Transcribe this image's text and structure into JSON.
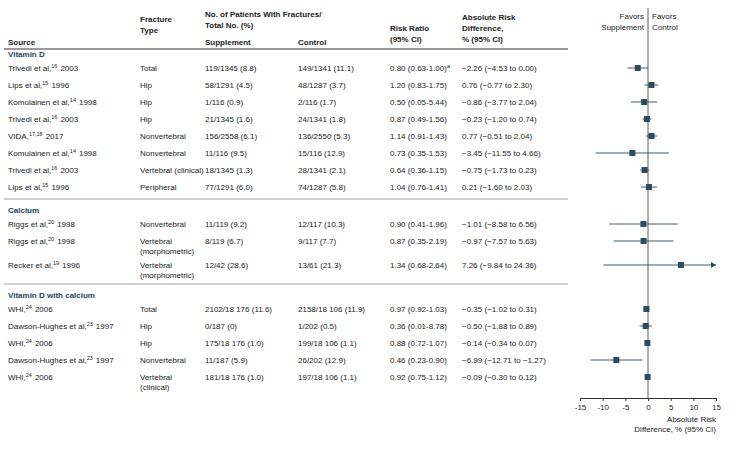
{
  "chart_data": {
    "type": "forest",
    "headers": {
      "source": "Source",
      "fracture_type": [
        "Fracture",
        "Type"
      ],
      "patients": [
        "No. of Patients With Fractures/",
        "Total No. (%)"
      ],
      "supplement": "Supplement",
      "control": "Control",
      "risk_ratio": [
        "Risk Ratio",
        "(95% CI)"
      ],
      "ard": [
        "Absolute Risk",
        "Difference,",
        "% (95% CI)"
      ]
    },
    "favors_left": [
      "Favors",
      "Supplement"
    ],
    "favors_right": [
      "Favors",
      "Control"
    ],
    "x_label": [
      "Absolute Risk",
      "Difference, % (95% CI)"
    ],
    "xlim": [
      -15,
      15
    ],
    "xticks": [
      -15,
      -10,
      -5,
      0,
      5,
      10,
      15
    ],
    "color": "#2e4b5b",
    "groups": [
      {
        "name": "Vitamin D",
        "rows": [
          {
            "author": "Trivedi et al,",
            "ref": "16",
            "year": "2003",
            "fracture_type": [
              "Total"
            ],
            "supplement": "119/1345 (8.8)",
            "control": "149/1341 (11.1)",
            "rr": "0.80 (0.63-1.00)",
            "rr_note": "a",
            "ard_label": "−2.26 (−4.53 to 0.00)",
            "ard": -2.26,
            "ci_low": -4.53,
            "ci_high": 0.0
          },
          {
            "author": "Lips et al,",
            "ref": "15",
            "year": "1996",
            "fracture_type": [
              "Hip"
            ],
            "supplement": "58/1291 (4.5)",
            "control": "48/1287 (3.7)",
            "rr": "1.20 (0.83-1.75)",
            "ard_label": "0.76 (−0.77 to 2.30)",
            "ard": 0.76,
            "ci_low": -0.77,
            "ci_high": 2.3
          },
          {
            "author": "Komulainen et al,",
            "ref": "14",
            "year": "1998",
            "fracture_type": [
              "Hip"
            ],
            "supplement": "1/116 (0.9)",
            "control": "2/116 (1.7)",
            "rr": "0.50 (0.05-5.44)",
            "ard_label": "−0.86 (−3.77 to 2.04)",
            "ard": -0.86,
            "ci_low": -3.77,
            "ci_high": 2.04
          },
          {
            "author": "Trivedi et al,",
            "ref": "16",
            "year": "2003",
            "fracture_type": [
              "Hip"
            ],
            "supplement": "21/1345 (1.6)",
            "control": "24/1341 (1.8)",
            "rr": "0.87 (0.49-1.56)",
            "ard_label": "−0.23 (−1.20 to 0.74)",
            "ard": -0.23,
            "ci_low": -1.2,
            "ci_high": 0.74
          },
          {
            "author": "VIDA,",
            "ref": "17,18",
            "year": "2017",
            "fracture_type": [
              "Nonvertebral"
            ],
            "supplement": "156/2558 (6.1)",
            "control": "136/2550 (5.3)",
            "rr": "1.14 (0.91-1.43)",
            "ard_label": "0.77 (−0.51 to 2.04)",
            "ard": 0.77,
            "ci_low": -0.51,
            "ci_high": 2.04
          },
          {
            "author": "Komulainen et al,",
            "ref": "14",
            "year": "1998",
            "fracture_type": [
              "Nonvertebral"
            ],
            "supplement": "11/116 (9.5)",
            "control": "15/116 (12.9)",
            "rr": "0.73 (0.35-1.53)",
            "ard_label": "−3.45 (−11.55 to 4.66)",
            "ard": -3.45,
            "ci_low": -11.55,
            "ci_high": 4.66
          },
          {
            "author": "Trivedi et al,",
            "ref": "16",
            "year": "2003",
            "fracture_type": [
              "Vertebral (clinical)"
            ],
            "supplement": "18/1345 (1.3)",
            "control": "28/1341 (2.1)",
            "rr": "0.64 (0.36-1.15)",
            "ard_label": "−0.75 (−1.73 to 0.23)",
            "ard": -0.75,
            "ci_low": -1.73,
            "ci_high": 0.23
          },
          {
            "author": "Lips et al,",
            "ref": "15",
            "year": "1996",
            "fracture_type": [
              "Peripheral"
            ],
            "supplement": "77/1291 (6.0)",
            "control": "74/1287 (5.8)",
            "rr": "1.04 (0.76-1.41)",
            "ard_label": "0.21 (−1.60 to 2.03)",
            "ard": 0.21,
            "ci_low": -1.6,
            "ci_high": 2.03
          }
        ]
      },
      {
        "name": "Calcium",
        "rows": [
          {
            "author": "Riggs et al,",
            "ref": "20",
            "year": "1998",
            "fracture_type": [
              "Nonvertebral"
            ],
            "supplement": "11/119 (9.2)",
            "control": "12/117 (10.3)",
            "rr": "0.90 (0.41-1.96)",
            "ard_label": "−1.01 (−8.58 to 6.56)",
            "ard": -1.01,
            "ci_low": -8.58,
            "ci_high": 6.56
          },
          {
            "author": "Riggs et al,",
            "ref": "20",
            "year": "1998",
            "fracture_type": [
              "Vertebral",
              "(morphometric)"
            ],
            "supplement": "8/119 (6.7)",
            "control": "9/117 (7.7)",
            "rr": "0.87 (0.35-2.19)",
            "ard_label": "−0.97 (−7.57 to 5.63)",
            "ard": -0.97,
            "ci_low": -7.57,
            "ci_high": 5.63
          },
          {
            "author": "Recker et al,",
            "ref": "19",
            "year": "1996",
            "fracture_type": [
              "Vertebral",
              "(morphometric)"
            ],
            "supplement": "12/42 (28.6)",
            "control": "13/61 (21.3)",
            "rr": "1.34 (0.68-2.64)",
            "ard_label": "7.26 (−9.84 to 24.36)",
            "ard": 7.26,
            "ci_low": -9.84,
            "ci_high": 24.36
          }
        ]
      },
      {
        "name": "Vitamin D with calcium",
        "rows": [
          {
            "author": "WHI,",
            "ref": "24",
            "year": "2006",
            "fracture_type": [
              "Total"
            ],
            "supplement": "2102/18 176 (11.6)",
            "control": "2158/18 106 (11.9)",
            "rr": "0.97 (0.92-1.03)",
            "ard_label": "−0.35 (−1.02 to 0.31)",
            "ard": -0.35,
            "ci_low": -1.02,
            "ci_high": 0.31
          },
          {
            "author": "Dawson-Hughes et al,",
            "ref": "23",
            "year": "1997",
            "fracture_type": [
              "Hip"
            ],
            "supplement": "0/187 (0)",
            "control": "1/202 (0.5)",
            "rr": "0.36 (0.01-8.78)",
            "ard_label": "−0.50 (−1.88 to 0.89)",
            "ard": -0.5,
            "ci_low": -1.88,
            "ci_high": 0.89
          },
          {
            "author": "WHI,",
            "ref": "24",
            "year": "2006",
            "fracture_type": [
              "Hip"
            ],
            "supplement": "175/18 176 (1.0)",
            "control": "199/18 106 (1.1)",
            "rr": "0.88 (0.72-1.07)",
            "ard_label": "−0.14 (−0.34 to 0.07)",
            "ard": -0.14,
            "ci_low": -0.34,
            "ci_high": 0.07
          },
          {
            "author": "Dawson-Hughes et al,",
            "ref": "23",
            "year": "1997",
            "fracture_type": [
              "Nonvertebral"
            ],
            "supplement": "11/187 (5.9)",
            "control": "26/202 (12.9)",
            "rr": "0.46 (0.23-0.90)",
            "ard_label": "−6.99 (−12.71 to −1.27)",
            "ard": -6.99,
            "ci_low": -12.71,
            "ci_high": -1.27
          },
          {
            "author": "WHI,",
            "ref": "24",
            "year": "2006",
            "fracture_type": [
              "Vertebral",
              "(clinical)"
            ],
            "supplement": "181/18 176 (1.0)",
            "control": "197/18 106 (1.1)",
            "rr": "0.92 (0.75-1.12)",
            "ard_label": "−0.09 (−0.30 to 0.12)",
            "ard": -0.09,
            "ci_low": -0.3,
            "ci_high": 0.12
          }
        ]
      }
    ]
  }
}
